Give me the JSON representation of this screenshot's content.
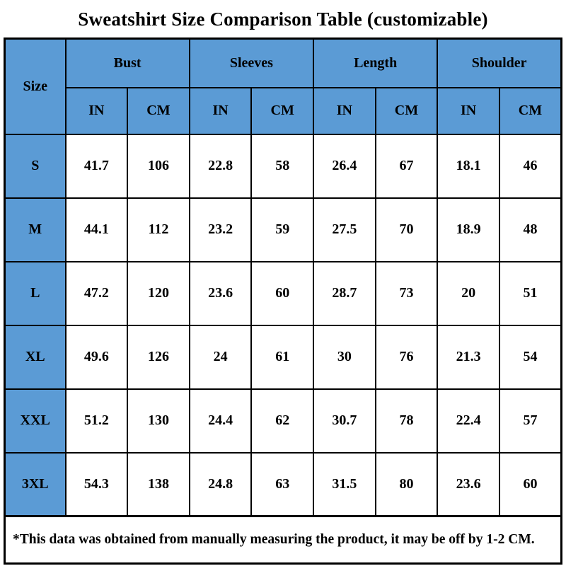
{
  "title": "Sweatshirt Size Comparison Table (customizable)",
  "colors": {
    "header_blue": "#5B9BD5",
    "border": "#000000",
    "cell_bg": "#FFFFFF",
    "text": "#000000"
  },
  "table": {
    "size_header": "Size",
    "groups": [
      {
        "label": "Bust"
      },
      {
        "label": "Sleeves"
      },
      {
        "label": "Length"
      },
      {
        "label": "Shoulder"
      }
    ],
    "unit_headers": [
      "IN",
      "CM",
      "IN",
      "CM",
      "IN",
      "CM",
      "IN",
      "CM"
    ],
    "rows": [
      {
        "size": "S",
        "values": [
          "41.7",
          "106",
          "22.8",
          "58",
          "26.4",
          "67",
          "18.1",
          "46"
        ]
      },
      {
        "size": "M",
        "values": [
          "44.1",
          "112",
          "23.2",
          "59",
          "27.5",
          "70",
          "18.9",
          "48"
        ]
      },
      {
        "size": "L",
        "values": [
          "47.2",
          "120",
          "23.6",
          "60",
          "28.7",
          "73",
          "20",
          "51"
        ]
      },
      {
        "size": "XL",
        "values": [
          "49.6",
          "126",
          "24",
          "61",
          "30",
          "76",
          "21.3",
          "54"
        ]
      },
      {
        "size": "XXL",
        "values": [
          "51.2",
          "130",
          "24.4",
          "62",
          "30.7",
          "78",
          "22.4",
          "57"
        ]
      },
      {
        "size": "3XL",
        "values": [
          "54.3",
          "138",
          "24.8",
          "63",
          "31.5",
          "80",
          "23.6",
          "60"
        ]
      }
    ],
    "footnote": "*This data was obtained from manually measuring the product, it may be off by 1-2 CM."
  }
}
